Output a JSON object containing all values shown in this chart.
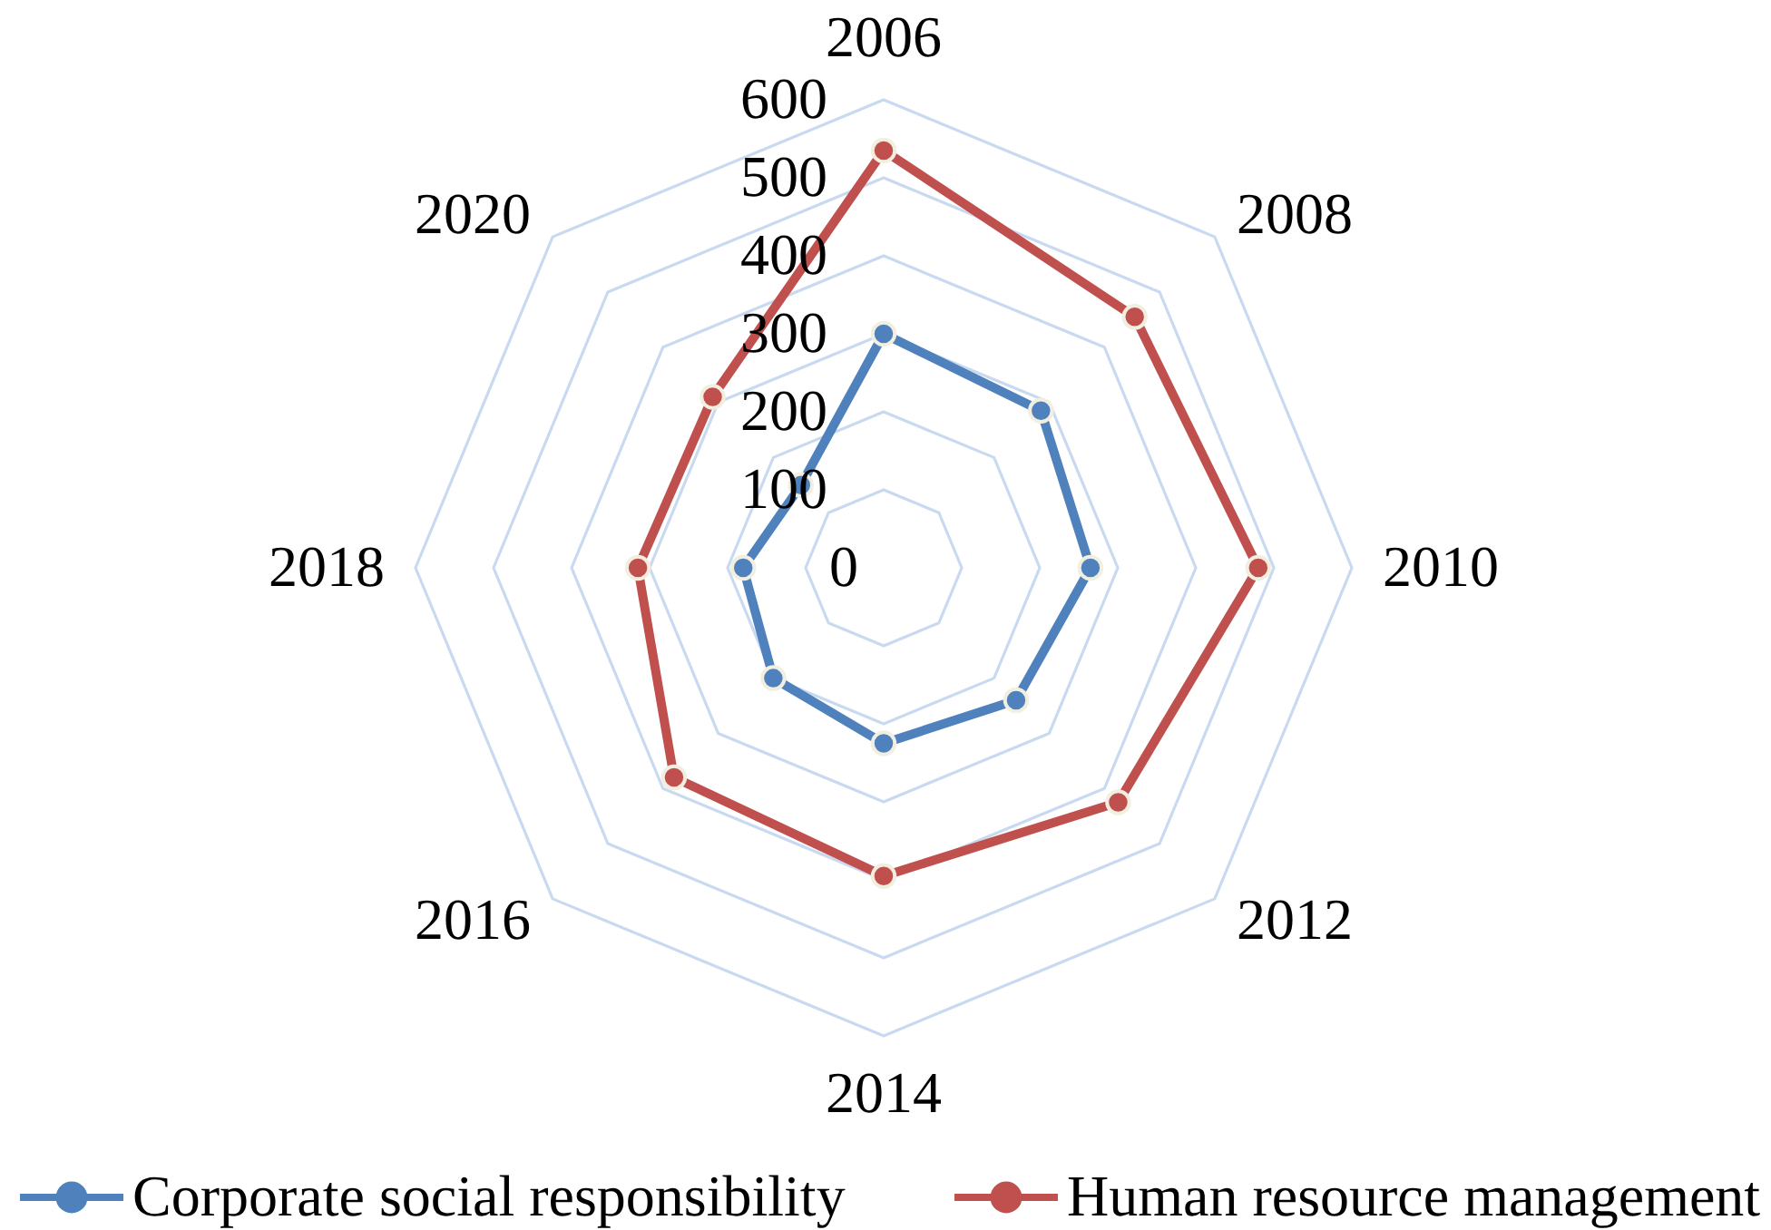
{
  "chart_data": {
    "type": "radar",
    "categories": [
      "2006",
      "2008",
      "2010",
      "2012",
      "2014",
      "2016",
      "2018",
      "2020"
    ],
    "series": [
      {
        "name": "Corporate social responsibility",
        "color": "#4f81bd",
        "values": [
          300,
          285,
          265,
          240,
          225,
          200,
          180,
          150
        ]
      },
      {
        "name": "Human resource management",
        "color": "#c0504d",
        "values": [
          535,
          455,
          480,
          425,
          395,
          380,
          315,
          310
        ]
      }
    ],
    "ylim": [
      0,
      600
    ],
    "yticks": [
      0,
      100,
      200,
      300,
      400,
      500,
      600
    ],
    "grid": true,
    "legend": "bottom",
    "marker": "circle",
    "line_style": "solid"
  }
}
